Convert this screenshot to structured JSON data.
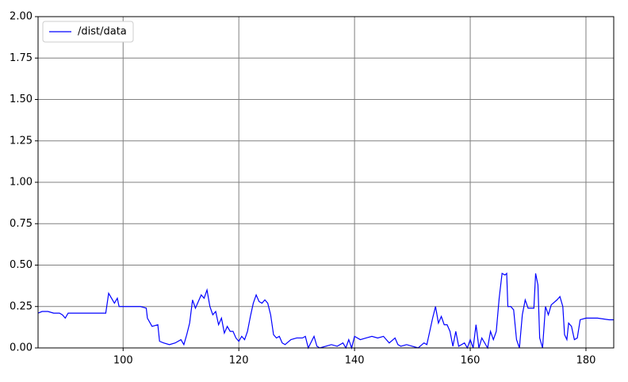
{
  "chart_data": {
    "type": "line",
    "x": [
      85.3,
      86,
      87,
      88,
      89,
      89.5,
      90,
      90.5,
      91,
      92,
      93,
      94,
      95,
      96,
      97,
      97.5,
      98,
      98.5,
      99,
      99.3,
      99.5,
      100,
      101,
      102,
      103,
      104,
      104.2,
      105,
      106,
      106.3,
      107,
      108,
      109,
      110,
      110.5,
      111,
      111.5,
      112,
      112.5,
      113,
      113.5,
      114,
      114.5,
      115,
      115.5,
      116,
      116.5,
      117,
      117.5,
      118,
      118.5,
      119,
      119.5,
      120,
      120.5,
      121,
      121.5,
      122,
      122.5,
      123,
      123.5,
      124,
      124.5,
      125,
      125.5,
      126,
      126.5,
      127,
      127.5,
      128,
      129,
      130,
      131,
      131.5,
      132,
      133,
      133.5,
      134,
      135,
      136,
      137,
      138,
      138.5,
      139,
      139.5,
      140,
      141,
      142,
      143,
      144,
      145,
      146,
      147,
      147.5,
      148,
      149,
      150,
      151,
      152,
      152.5,
      153,
      153.5,
      154,
      154.5,
      155,
      155.5,
      156,
      156.5,
      157,
      157.5,
      158,
      159,
      159.5,
      160,
      160.5,
      161,
      161.5,
      162,
      163,
      163.5,
      164,
      164.5,
      165,
      165.5,
      166,
      166.3,
      166.5,
      167,
      167.5,
      168,
      168.5,
      169,
      169.5,
      170,
      171,
      171.3,
      171.7,
      172,
      172.5,
      173,
      173.5,
      174,
      175,
      175.5,
      176,
      176.3,
      176.7,
      177,
      177.5,
      178,
      178.5,
      179,
      180,
      182,
      184,
      184.8
    ],
    "series": [
      {
        "name": "/dist/data",
        "color": "#0000ff",
        "values": [
          0.21,
          0.22,
          0.22,
          0.21,
          0.21,
          0.2,
          0.18,
          0.21,
          0.21,
          0.21,
          0.21,
          0.21,
          0.21,
          0.21,
          0.21,
          0.33,
          0.3,
          0.27,
          0.3,
          0.25,
          0.25,
          0.25,
          0.25,
          0.25,
          0.25,
          0.24,
          0.18,
          0.13,
          0.14,
          0.04,
          0.03,
          0.02,
          0.03,
          0.05,
          0.02,
          0.08,
          0.15,
          0.29,
          0.24,
          0.28,
          0.32,
          0.3,
          0.35,
          0.25,
          0.2,
          0.22,
          0.14,
          0.18,
          0.09,
          0.13,
          0.1,
          0.1,
          0.06,
          0.04,
          0.07,
          0.05,
          0.1,
          0.19,
          0.27,
          0.32,
          0.28,
          0.27,
          0.29,
          0.27,
          0.2,
          0.08,
          0.06,
          0.07,
          0.03,
          0.02,
          0.05,
          0.06,
          0.06,
          0.07,
          0.0,
          0.07,
          0.01,
          0.0,
          0.01,
          0.02,
          0.01,
          0.03,
          0.0,
          0.05,
          0.0,
          0.07,
          0.05,
          0.06,
          0.07,
          0.06,
          0.07,
          0.03,
          0.06,
          0.02,
          0.01,
          0.02,
          0.01,
          0.0,
          0.03,
          0.02,
          0.1,
          0.18,
          0.25,
          0.15,
          0.19,
          0.14,
          0.14,
          0.1,
          0.01,
          0.1,
          0.01,
          0.03,
          0.0,
          0.05,
          0.0,
          0.14,
          0.0,
          0.06,
          0.0,
          0.1,
          0.05,
          0.1,
          0.3,
          0.45,
          0.44,
          0.45,
          0.25,
          0.25,
          0.23,
          0.05,
          0.0,
          0.2,
          0.29,
          0.24,
          0.24,
          0.45,
          0.38,
          0.06,
          0.0,
          0.25,
          0.2,
          0.26,
          0.29,
          0.31,
          0.25,
          0.08,
          0.05,
          0.15,
          0.13,
          0.05,
          0.06,
          0.17,
          0.18,
          0.18,
          0.17,
          0.17
        ]
      }
    ],
    "xlim": [
      85.3,
      184.8
    ],
    "ylim": [
      0,
      2
    ],
    "xticks": [
      100,
      120,
      140,
      160,
      180
    ],
    "yticks": [
      {
        "value": 0,
        "label": "0.00"
      },
      {
        "value": 0.25,
        "label": "0.25"
      },
      {
        "value": 0.5,
        "label": "0.50"
      },
      {
        "value": 0.75,
        "label": "0.75"
      },
      {
        "value": 1,
        "label": "1.00"
      },
      {
        "value": 1.25,
        "label": "1.25"
      },
      {
        "value": 1.5,
        "label": "1.50"
      },
      {
        "value": 1.75,
        "label": "1.75"
      },
      {
        "value": 2,
        "label": "2.00"
      }
    ],
    "grid": true,
    "legend": "upper-left"
  }
}
